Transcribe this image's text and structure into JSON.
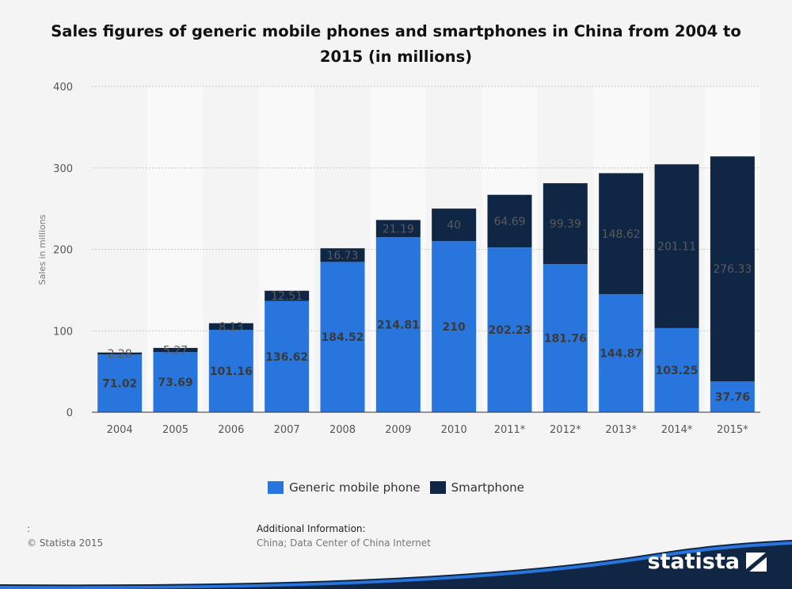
{
  "chart_data": {
    "type": "bar",
    "stacked": true,
    "title": "Sales figures of generic mobile phones and smartphones in China from 2004 to 2015 (in millions)",
    "ylabel": "Sales in millions",
    "xlabel": "",
    "ylim": [
      0,
      400
    ],
    "yticks": [
      0,
      100,
      200,
      300,
      400
    ],
    "grid": true,
    "legend_position": "bottom",
    "categories": [
      "2004",
      "2005",
      "2006",
      "2007",
      "2008",
      "2009",
      "2010",
      "2011*",
      "2012*",
      "2013*",
      "2014*",
      "2015*"
    ],
    "series": [
      {
        "name": "Generic mobile phone",
        "color": "#2876dd",
        "values": [
          71.02,
          73.69,
          101.16,
          136.62,
          184.52,
          214.81,
          210,
          202.23,
          181.76,
          144.87,
          103.25,
          37.76
        ],
        "labels": [
          "71.02",
          "73.69",
          "101.16",
          "136.62",
          "184.52",
          "214.81",
          "210",
          "202.23",
          "181.76",
          "144.87",
          "103.25",
          "37.76"
        ]
      },
      {
        "name": "Smartphone",
        "color": "#0f2745",
        "values": [
          2.28,
          5.27,
          8.13,
          12.51,
          16.73,
          21.19,
          40,
          64.69,
          99.39,
          148.62,
          201.11,
          276.33
        ],
        "labels": [
          "2.28",
          "5.27",
          "8.13",
          "12.51",
          "16.73",
          "21.19",
          "40",
          "64.69",
          "99.39",
          "148.62",
          "201.11",
          "276.33"
        ]
      }
    ]
  },
  "footer": {
    "source_colon": ":",
    "copyright": "© Statista 2015",
    "additional_info_heading": "Additional Information:",
    "additional_info_text": "China; Data Center of China Internet"
  },
  "brand": {
    "name": "statista"
  }
}
